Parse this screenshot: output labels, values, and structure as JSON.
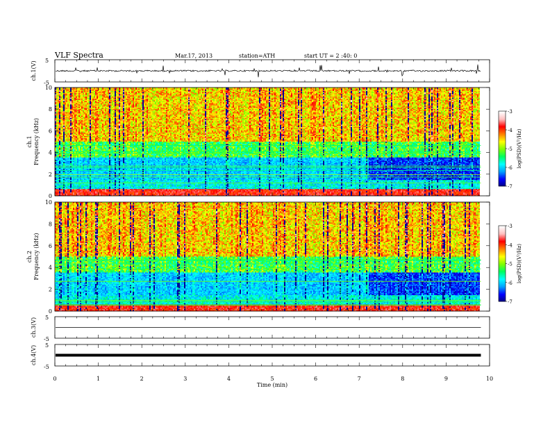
{
  "header": {
    "title": "VLF Spectra",
    "date": "Mar.17, 2013",
    "station": "station=ATH",
    "start": "start UT = 2 :40: 0"
  },
  "chart_data": [
    {
      "panel": "ch1-waveform",
      "type": "line",
      "ylabel": "ch.1(V)",
      "ylim": [
        -5,
        5
      ],
      "yticks": [
        "5",
        "-5"
      ],
      "baseline": 0,
      "description_units": "V"
    },
    {
      "panel": "ch1-spectrogram",
      "type": "heatmap",
      "ylabel_channel": "ch.1",
      "ylabel": "Frequency (kHz)",
      "ylim": [
        0,
        10
      ],
      "yticks": [
        "0",
        "2",
        "4",
        "6",
        "8",
        "10"
      ],
      "colorbar": {
        "label": "log(PSD)(V²/Hz)",
        "range": [
          -7,
          -3
        ],
        "ticks": [
          "-3",
          "-4",
          "-5",
          "-6",
          "-7"
        ]
      }
    },
    {
      "panel": "ch2-spectrogram",
      "type": "heatmap",
      "ylabel_channel": "ch.2",
      "ylabel": "Frequency (kHz)",
      "ylim": [
        0,
        10
      ],
      "yticks": [
        "0",
        "2",
        "4",
        "6",
        "8",
        "10"
      ],
      "colorbar": {
        "label": "log(PSD)(V²/Hz)",
        "range": [
          -7,
          -3
        ],
        "ticks": [
          "-3",
          "-4",
          "-5",
          "-6",
          "-7"
        ]
      }
    },
    {
      "panel": "ch3-waveform",
      "type": "line",
      "ylabel": "ch.3(V)",
      "ylim": [
        -5,
        5
      ],
      "yticks": [
        "5",
        "-5"
      ],
      "baseline": 0
    },
    {
      "panel": "ch4-waveform",
      "type": "line",
      "ylabel": "ch.4(V)",
      "ylim": [
        -5,
        5
      ],
      "yticks": [
        "5",
        "-5"
      ],
      "baseline": 0
    }
  ],
  "xaxis": {
    "label": "Time (min)",
    "xlim": [
      0,
      10
    ],
    "ticks": [
      "0",
      "1",
      "2",
      "3",
      "4",
      "5",
      "6",
      "7",
      "8",
      "9",
      "10"
    ],
    "data_end": 9.8
  },
  "colors": {
    "colormap": [
      "#000080",
      "#0000ff",
      "#00a0ff",
      "#00ffff",
      "#00ff60",
      "#80ff00",
      "#ffff00",
      "#ff8000",
      "#ff0000",
      "#ffc0c0",
      "#ffffff"
    ]
  }
}
